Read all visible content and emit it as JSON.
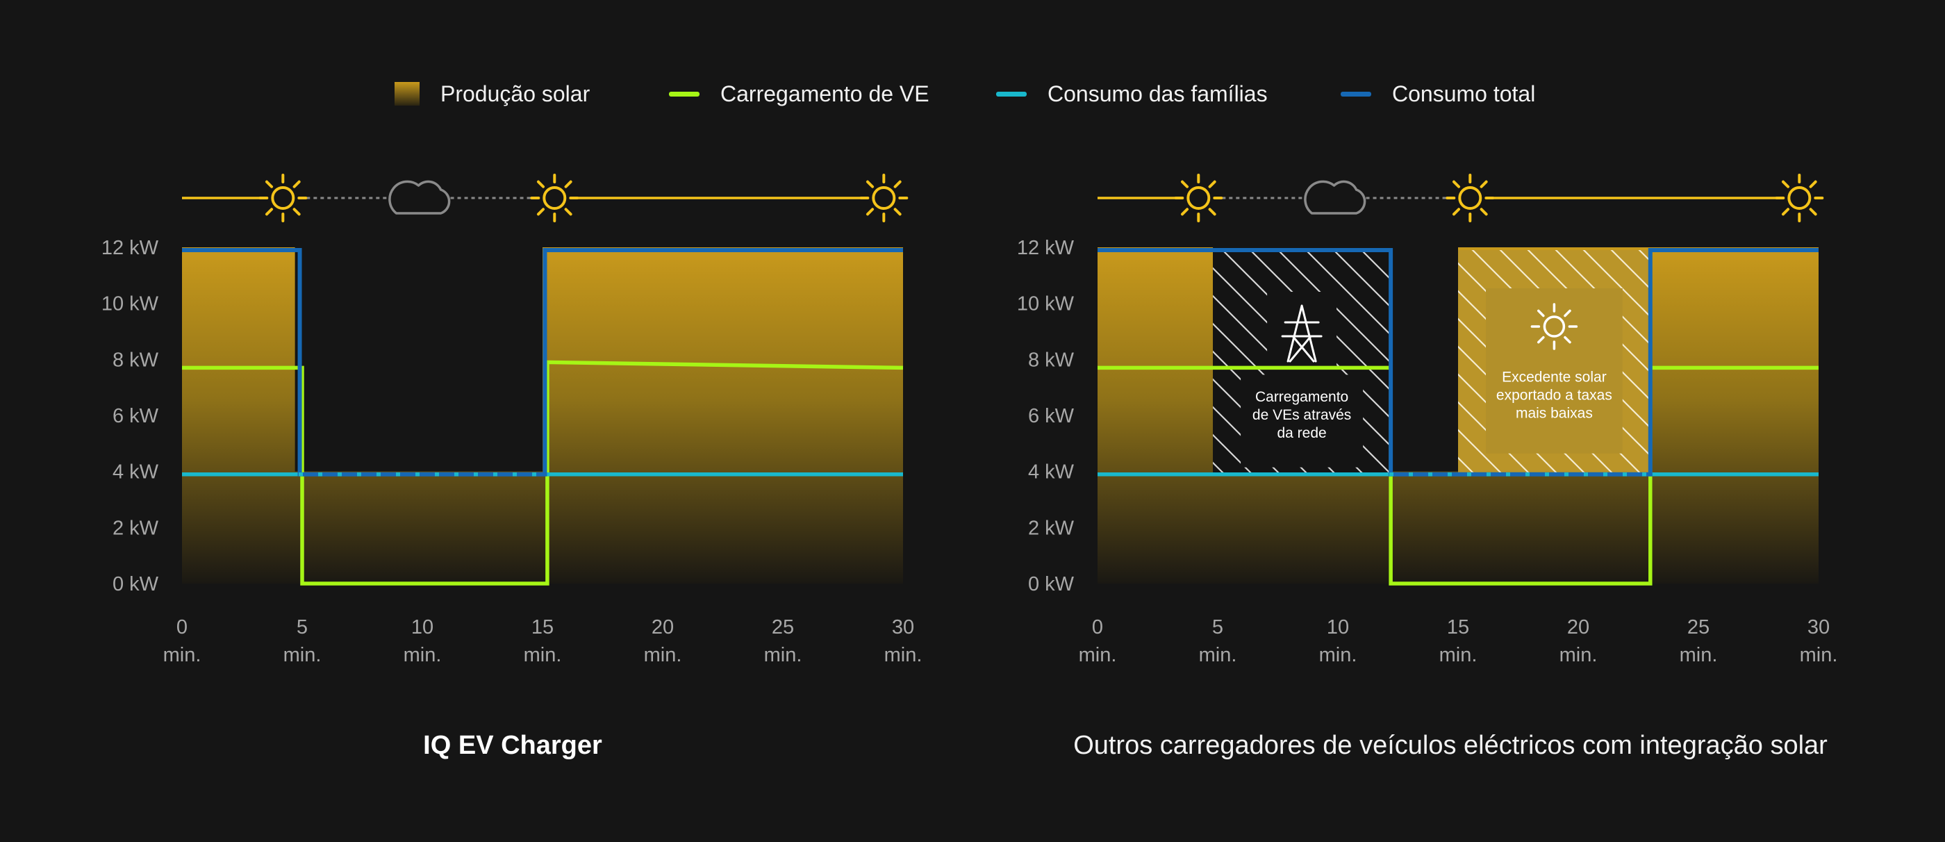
{
  "legend": {
    "solar": "Produção solar",
    "ev": "Carregamento de VE",
    "household": "Consumo das famílias",
    "total": "Consumo total"
  },
  "captions": {
    "left": "IQ EV Charger",
    "right": "Outros carregadores de veículos eléctricos com integração solar"
  },
  "colors": {
    "background": "#151515",
    "solar": "#c99a1c",
    "ev": "#a6f516",
    "household": "#19b8cc",
    "total": "#1668b4",
    "sun": "#f5c41a",
    "cloud": "#8a8a8a"
  },
  "chart_data": [
    {
      "type": "line",
      "title": "IQ EV Charger",
      "x_unit": "min.",
      "xlim": [
        0,
        30
      ],
      "ylim": [
        0,
        12
      ],
      "x_ticks": [
        0,
        5,
        10,
        15,
        20,
        25,
        30
      ],
      "y_ticks": [
        "0 kW",
        "2 kW",
        "4 kW",
        "6 kW",
        "8 kW",
        "10 kW",
        "12 kW"
      ],
      "weather": [
        {
          "x": 4.2,
          "icon": "sun-icon"
        },
        {
          "x": 9.9,
          "icon": "cloud-icon"
        },
        {
          "x": 15.5,
          "icon": "sun-icon"
        },
        {
          "x": 29.2,
          "icon": "sun-icon"
        }
      ],
      "series": [
        {
          "name": "Produção solar",
          "kind": "area",
          "points": [
            [
              0,
              12
            ],
            [
              4.7,
              12
            ],
            [
              4.7,
              4
            ],
            [
              15,
              4
            ],
            [
              15,
              12
            ],
            [
              30,
              12
            ]
          ]
        },
        {
          "name": "Carregamento de VE",
          "points": [
            [
              0,
              7.7
            ],
            [
              5,
              7.7
            ],
            [
              5,
              0
            ],
            [
              15.2,
              0
            ],
            [
              15.2,
              7.9
            ],
            [
              30,
              7.7
            ]
          ]
        },
        {
          "name": "Consumo das famílias",
          "points": [
            [
              0,
              3.9
            ],
            [
              30,
              3.9
            ]
          ]
        },
        {
          "name": "Consumo total",
          "points": [
            [
              0,
              11.9
            ],
            [
              4.9,
              11.9
            ],
            [
              4.9,
              3.9
            ],
            [
              15.1,
              3.9
            ],
            [
              15.1,
              11.9
            ],
            [
              30,
              11.9
            ]
          ]
        }
      ],
      "annotations": []
    },
    {
      "type": "line",
      "title": "Outros carregadores de veículos eléctricos com integração solar",
      "x_unit": "min.",
      "xlim": [
        0,
        30
      ],
      "ylim": [
        0,
        12
      ],
      "x_ticks": [
        0,
        5,
        10,
        15,
        20,
        25,
        30
      ],
      "y_ticks": [
        "0 kW",
        "2 kW",
        "4 kW",
        "6 kW",
        "8 kW",
        "10 kW",
        "12 kW"
      ],
      "weather": [
        {
          "x": 4.2,
          "icon": "sun-icon"
        },
        {
          "x": 9.9,
          "icon": "cloud-icon"
        },
        {
          "x": 15.5,
          "icon": "sun-icon"
        },
        {
          "x": 29.2,
          "icon": "sun-icon"
        }
      ],
      "series": [
        {
          "name": "Produção solar",
          "kind": "area",
          "points": [
            [
              0,
              12
            ],
            [
              4.8,
              12
            ],
            [
              4.8,
              4
            ],
            [
              15,
              4
            ],
            [
              15,
              12
            ],
            [
              30,
              12
            ]
          ]
        },
        {
          "name": "Carregamento de VE",
          "points": [
            [
              0,
              7.7
            ],
            [
              12.2,
              7.7
            ],
            [
              12.2,
              0
            ],
            [
              23,
              0
            ],
            [
              23,
              7.7
            ],
            [
              30,
              7.7
            ]
          ]
        },
        {
          "name": "Consumo das famílias",
          "points": [
            [
              0,
              3.9
            ],
            [
              30,
              3.9
            ]
          ]
        },
        {
          "name": "Consumo total",
          "points": [
            [
              0,
              11.9
            ],
            [
              12.2,
              11.9
            ],
            [
              12.2,
              3.9
            ],
            [
              23,
              3.9
            ],
            [
              23,
              11.9
            ],
            [
              30,
              11.9
            ]
          ]
        }
      ],
      "annotations": [
        {
          "text": [
            "Carregamento",
            "de VEs através",
            "da rede"
          ],
          "icon": "power-tower-icon",
          "x_range": [
            4.8,
            12.2
          ],
          "y_range": [
            3.9,
            11.9
          ]
        },
        {
          "text": [
            "Excedente solar",
            "exportado a taxas",
            "mais baixas"
          ],
          "icon": "sun-icon",
          "x_range": [
            15,
            23
          ],
          "y_range": [
            3.9,
            11.9
          ]
        }
      ]
    }
  ]
}
